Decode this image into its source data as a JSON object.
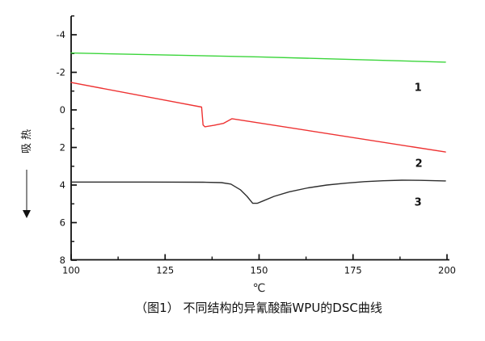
{
  "caption": "（图1） 不同结构的异氰酸酯WPU的DSC曲线",
  "chart_data": {
    "type": "line",
    "title": "",
    "xlabel": "℃",
    "ylabel": "吸热",
    "y_arrow_direction": "down",
    "xlim": [
      100,
      200
    ],
    "ylim": [
      -4,
      8
    ],
    "x_ticks": [
      100,
      125,
      150,
      175,
      200
    ],
    "x_minor_ticks": [
      112.5,
      137.5,
      162.5,
      187.5
    ],
    "y_ticks": [
      -4,
      -2,
      0,
      2,
      4,
      6,
      8
    ],
    "y_minor_ticks": [
      -5,
      -3,
      -1,
      1,
      3,
      5,
      7
    ],
    "grid": "off",
    "axis_color": "#111111",
    "series": [
      {
        "name": "1",
        "color": "#3bd53b",
        "points": [
          [
            100,
            -3.03
          ],
          [
            150,
            -2.82
          ],
          [
            199.6,
            -2.54
          ]
        ]
      },
      {
        "name": "2",
        "color": "#ee3232",
        "points": [
          [
            100,
            -1.46
          ],
          [
            134.7,
            -0.15
          ],
          [
            135.1,
            0.8
          ],
          [
            135.6,
            0.9
          ],
          [
            138,
            0.82
          ],
          [
            140.5,
            0.72
          ],
          [
            142.8,
            0.47
          ],
          [
            199.6,
            2.24
          ]
        ]
      },
      {
        "name": "3",
        "color": "#2e2e2e",
        "points": [
          [
            100,
            3.84
          ],
          [
            120,
            3.84
          ],
          [
            135,
            3.85
          ],
          [
            140,
            3.87
          ],
          [
            142.5,
            3.95
          ],
          [
            145,
            4.25
          ],
          [
            146.8,
            4.6
          ],
          [
            148.3,
            4.97
          ],
          [
            149.5,
            4.97
          ],
          [
            151,
            4.85
          ],
          [
            154,
            4.6
          ],
          [
            158,
            4.36
          ],
          [
            163,
            4.15
          ],
          [
            168,
            4.0
          ],
          [
            173,
            3.9
          ],
          [
            178,
            3.82
          ],
          [
            183,
            3.77
          ],
          [
            188,
            3.74
          ],
          [
            193,
            3.75
          ],
          [
            199.6,
            3.78
          ]
        ]
      }
    ],
    "series_labels": [
      {
        "text": "1",
        "x": 192.3,
        "y": -1.2
      },
      {
        "text": "2",
        "x": 192.5,
        "y": 2.84
      },
      {
        "text": "3",
        "x": 192.3,
        "y": 4.9
      }
    ]
  }
}
